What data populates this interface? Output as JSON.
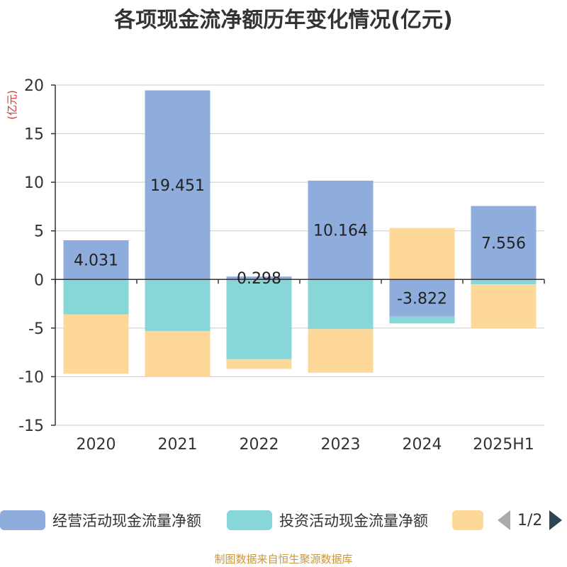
{
  "chart_data": {
    "type": "bar",
    "stacked": true,
    "title": "各项现金流净额历年变化情况(亿元)",
    "ylabel": "(亿元)",
    "xlabel": "",
    "categories": [
      "2020",
      "2021",
      "2022",
      "2023",
      "2024",
      "2025H1"
    ],
    "ylim": [
      -15,
      20
    ],
    "yticks": [
      20,
      15,
      10,
      5,
      0,
      -5,
      -10,
      -15
    ],
    "grid": true,
    "series": [
      {
        "name": "经营活动现金流量净额",
        "color": "#8eacdc",
        "values": [
          4.031,
          19.451,
          0.298,
          10.164,
          -3.822,
          7.556
        ],
        "labels": [
          "4.031",
          "19.451",
          "0.298",
          "10.164",
          "-3.822",
          "7.556"
        ]
      },
      {
        "name": "投资活动现金流量净额",
        "color": "#87d6d8",
        "values": [
          -3.6,
          -5.3,
          -8.2,
          -5.1,
          -0.7,
          -0.5
        ]
      },
      {
        "name": "",
        "color": "#fdd898",
        "values": [
          -6.1,
          -4.7,
          -1.0,
          -4.5,
          5.3,
          -4.5
        ]
      }
    ]
  },
  "legend": {
    "pager_text": "1/2",
    "pager_prev_icon": "triangle-left-icon",
    "pager_next_icon": "triangle-right-icon"
  },
  "footer": {
    "source": "制图数据来自恒生聚源数据库"
  },
  "colors": {
    "axis": "#333333",
    "grid": "#cccccc",
    "ylabel": "#e03030",
    "footer": "#c8963c"
  }
}
